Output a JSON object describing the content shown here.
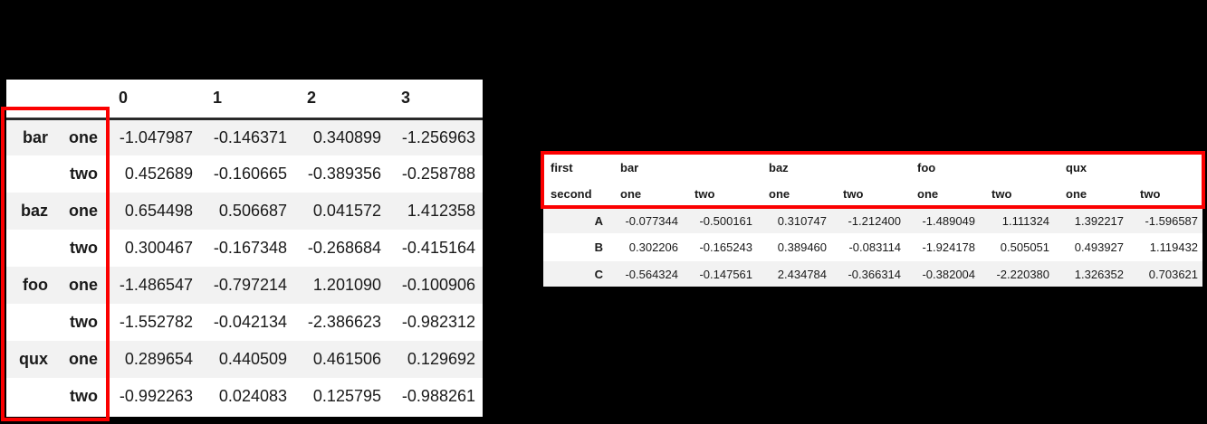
{
  "colors": {
    "background": "#000000",
    "card": "#ffffff",
    "stripe": "#f2f2f2",
    "text": "#1a1a1a",
    "annotation_red": "#fb0000"
  },
  "left_table": {
    "columns": [
      "0",
      "1",
      "2",
      "3"
    ],
    "rows": [
      {
        "level0": "bar",
        "level1": "one",
        "values": [
          "-1.047987",
          "-0.146371",
          "0.340899",
          "-1.256963"
        ]
      },
      {
        "level0": "",
        "level1": "two",
        "values": [
          "0.452689",
          "-0.160665",
          "-0.389356",
          "-0.258788"
        ]
      },
      {
        "level0": "baz",
        "level1": "one",
        "values": [
          "0.654498",
          "0.506687",
          "0.041572",
          "1.412358"
        ]
      },
      {
        "level0": "",
        "level1": "two",
        "values": [
          "0.300467",
          "-0.167348",
          "-0.268684",
          "-0.415164"
        ]
      },
      {
        "level0": "foo",
        "level1": "one",
        "values": [
          "-1.486547",
          "-0.797214",
          "1.201090",
          "-0.100906"
        ]
      },
      {
        "level0": "",
        "level1": "two",
        "values": [
          "-1.552782",
          "-0.042134",
          "-2.386623",
          "-0.982312"
        ]
      },
      {
        "level0": "qux",
        "level1": "one",
        "values": [
          "0.289654",
          "0.440509",
          "0.461506",
          "0.129692"
        ]
      },
      {
        "level0": "",
        "level1": "two",
        "values": [
          "-0.992263",
          "0.024083",
          "0.125795",
          "-0.988261"
        ]
      }
    ]
  },
  "right_table": {
    "index_names": [
      "first",
      "second"
    ],
    "column_groups": [
      "bar",
      "baz",
      "foo",
      "qux"
    ],
    "sub_columns": [
      "one",
      "two",
      "one",
      "two",
      "one",
      "two",
      "one",
      "two"
    ],
    "rows": [
      {
        "label": "A",
        "values": [
          "-0.077344",
          "-0.500161",
          "0.310747",
          "-1.212400",
          "-1.489049",
          "1.111324",
          "1.392217",
          "-1.596587"
        ]
      },
      {
        "label": "B",
        "values": [
          "0.302206",
          "-0.165243",
          "0.389460",
          "-0.083114",
          "-1.924178",
          "0.505051",
          "0.493927",
          "1.119432"
        ]
      },
      {
        "label": "C",
        "values": [
          "-0.564324",
          "-0.147561",
          "2.434784",
          "-0.366314",
          "-0.382004",
          "-2.220380",
          "1.326352",
          "0.703621"
        ]
      }
    ]
  }
}
